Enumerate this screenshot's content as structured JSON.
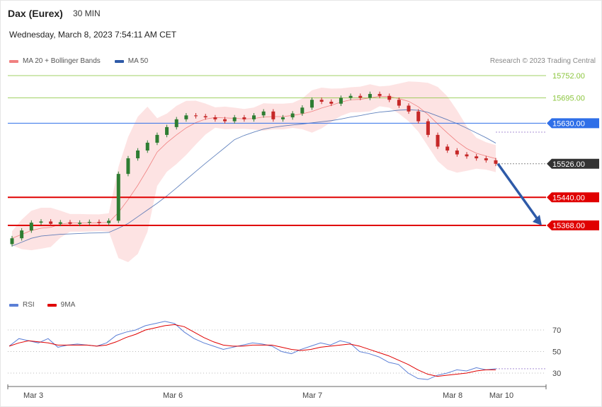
{
  "header": {
    "title": "Dax (Eurex)",
    "timeframe": "30 MIN",
    "datetime": "Wednesday, March 8, 2023 7:54:11 AM CET",
    "credit": "Research © 2023 Trading Central"
  },
  "legend": {
    "ma20_label": "MA 20 + Bollinger Bands",
    "ma50_label": "MA 50",
    "ma20_color": "#f08080",
    "ma50_color": "#2e5aa8"
  },
  "rsi_legend": {
    "rsi_label": "RSI",
    "ma_label": "9MA",
    "rsi_color": "#5b7fd6",
    "ma_color": "#e00000"
  },
  "chart_data": {
    "type": "candlestick",
    "y_range": [
      15200,
      15800
    ],
    "x_labels": [
      "Mar 3",
      "Mar 6",
      "Mar 7",
      "Mar 8",
      "Mar 10"
    ],
    "levels": [
      {
        "label": "15752.00",
        "value": 15752,
        "kind": "resistance-light",
        "color": "#8cc63f"
      },
      {
        "label": "15695.00",
        "value": 15695,
        "kind": "resistance-light",
        "color": "#8cc63f"
      },
      {
        "label": "15630.00",
        "value": 15630,
        "kind": "pivot",
        "color": "#2f6fe8"
      },
      {
        "label": "15526.00",
        "value": 15526,
        "kind": "last-price",
        "color": "#333333"
      },
      {
        "label": "15440.00",
        "value": 15440,
        "kind": "support",
        "color": "#e00000"
      },
      {
        "label": "15368.00",
        "value": 15368,
        "kind": "support",
        "color": "#e00000"
      }
    ],
    "close_path": [
      15335,
      15355,
      15375,
      15378,
      15372,
      15376,
      15372,
      15375,
      15377,
      15374,
      15380,
      15500,
      15540,
      15560,
      15580,
      15600,
      15620,
      15640,
      15650,
      15648,
      15645,
      15640,
      15635,
      15645,
      15640,
      15650,
      15660,
      15640,
      15645,
      15655,
      15670,
      15690,
      15685,
      15680,
      15695,
      15700,
      15695,
      15705,
      15700,
      15690,
      15675,
      15660,
      15635,
      15600,
      15570,
      15560,
      15550,
      15545,
      15540,
      15535,
      15526
    ],
    "projection": {
      "from": 15526,
      "to": 15368
    },
    "rsi": {
      "ticks": [
        70,
        50,
        30
      ],
      "rsi_path": [
        55,
        62,
        60,
        58,
        62,
        54,
        56,
        57,
        56,
        55,
        58,
        65,
        68,
        70,
        74,
        76,
        78,
        76,
        68,
        62,
        58,
        55,
        52,
        54,
        56,
        58,
        57,
        55,
        50,
        48,
        52,
        55,
        58,
        56,
        60,
        58,
        50,
        48,
        45,
        40,
        38,
        30,
        25,
        24,
        28,
        30,
        33,
        32,
        35,
        33,
        34
      ],
      "ma_path": [
        55,
        58,
        60,
        59,
        58,
        56,
        56,
        56,
        56,
        55,
        56,
        59,
        63,
        66,
        70,
        72,
        74,
        75,
        73,
        68,
        63,
        59,
        56,
        55,
        55,
        56,
        56,
        56,
        54,
        52,
        51,
        52,
        54,
        55,
        56,
        57,
        55,
        52,
        49,
        46,
        42,
        38,
        33,
        29,
        27,
        28,
        29,
        30,
        32,
        33,
        33
      ]
    }
  }
}
